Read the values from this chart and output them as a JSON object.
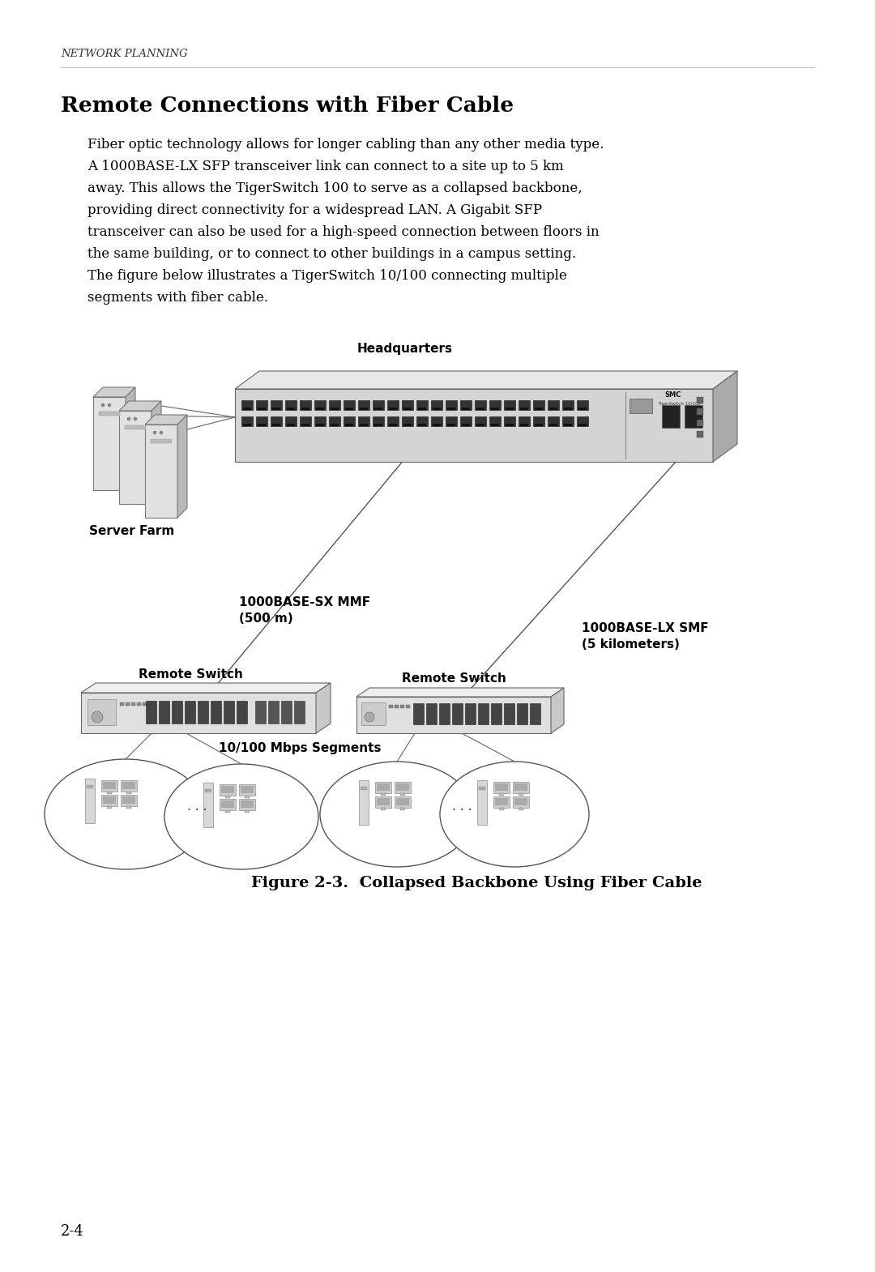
{
  "page_title": "Network Planning",
  "page_title_display": "NETWORK PLANNING",
  "section_title": "Remote Connections with Fiber Cable",
  "body_lines": [
    "Fiber optic technology allows for longer cabling than any other media type.",
    "A 1000BASE-LX SFP transceiver link can connect to a site up to 5 km",
    "away. This allows the TigerSwitch 100 to serve as a collapsed backbone,",
    "providing direct connectivity for a widespread LAN. A Gigabit SFP",
    "transceiver can also be used for a high-speed connection between floors in",
    "the same building, or to connect to other buildings in a campus setting.",
    "The figure below illustrates a TigerSwitch 10/100 connecting multiple",
    "segments with fiber cable."
  ],
  "hq_label": "Headquarters",
  "server_farm_label": "Server Farm",
  "remote_switch_left_label": "Remote Switch",
  "remote_switch_right_label": "Remote Switch",
  "fiber_mmf_label1": "1000BASE-SX MMF",
  "fiber_mmf_label2": "(500 m)",
  "fiber_smf_label1": "1000BASE-LX SMF",
  "fiber_smf_label2": "(5 kilometers)",
  "segments_label": "10/100 Mbps Segments",
  "figure_caption": "Figure 2-3.  Collapsed Backbone Using Fiber Cable",
  "page_number": "2-4",
  "bg_color": "#ffffff",
  "text_color": "#000000",
  "line_color": "#555555",
  "switch_face_color": "#d4d4d4",
  "switch_top_color": "#e8e8e8",
  "switch_side_color": "#aaaaaa",
  "port_color": "#333333",
  "server_face_color": "#e2e2e2",
  "server_top_color": "#d0d0d0",
  "server_side_color": "#b8b8b8"
}
